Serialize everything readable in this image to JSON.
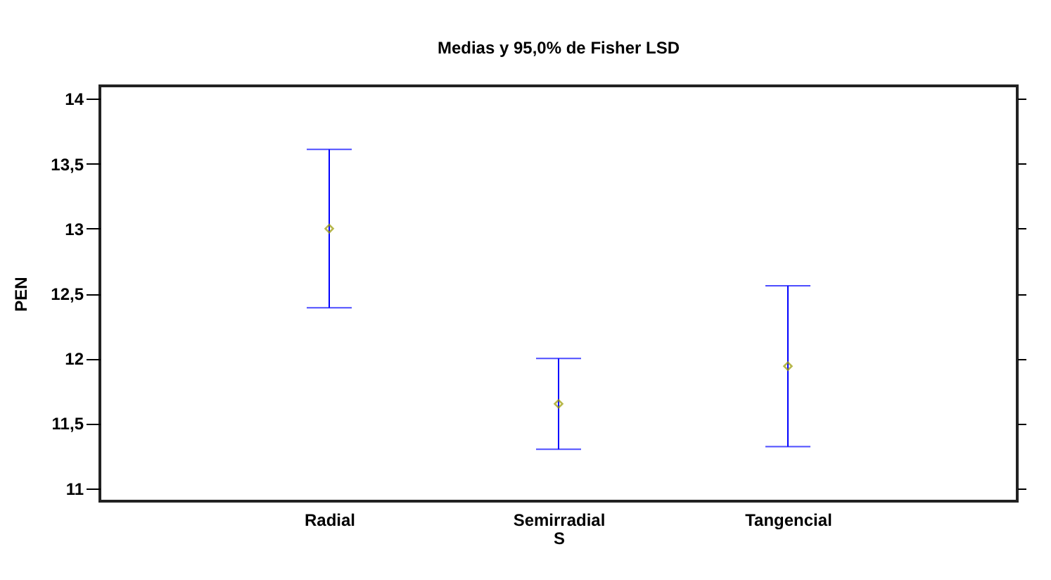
{
  "chart_data": {
    "type": "scatter",
    "title": "Medias y 95,0% de Fisher LSD",
    "xlabel": "S",
    "ylabel": "PEN",
    "categories": [
      "Radial",
      "Semirradial",
      "Tangencial"
    ],
    "series": [
      {
        "color": "#999900",
        "values": [
          13.0,
          11.65,
          11.94
        ],
        "errors": [
          0.61,
          0.35,
          0.62
        ]
      }
    ],
    "ylim": [
      10.9,
      14.1
    ],
    "yticks": [
      {
        "value": 11,
        "label": "11"
      },
      {
        "value": 11.5,
        "label": "11,5"
      },
      {
        "value": 12,
        "label": "12"
      },
      {
        "value": 12.5,
        "label": "12,5"
      },
      {
        "value": 13,
        "label": "13"
      },
      {
        "value": 13.5,
        "label": "13,5"
      },
      {
        "value": 14,
        "label": "14"
      }
    ],
    "marker": "diamond",
    "grid": false
  }
}
